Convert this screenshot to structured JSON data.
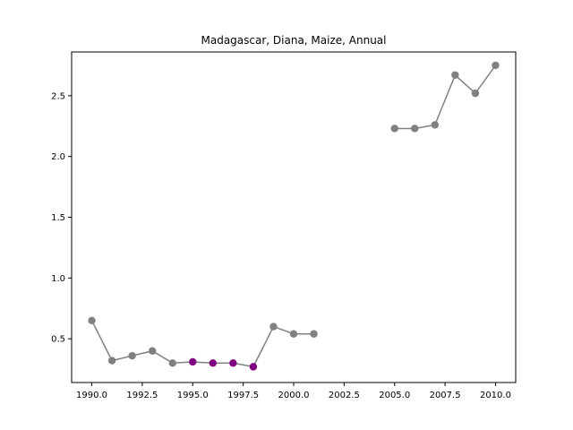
{
  "chart_data": {
    "type": "line",
    "title": "Madagascar, Diana, Maize, Annual",
    "xlabel": "",
    "ylabel": "",
    "xlim": [
      1989.0,
      2011.0
    ],
    "ylim": [
      0.14,
      2.86
    ],
    "x_ticks": [
      1990.0,
      1992.5,
      1995.0,
      1997.5,
      2000.0,
      2002.5,
      2005.0,
      2007.5,
      2010.0
    ],
    "x_tick_labels": [
      "1990.0",
      "1992.5",
      "1995.0",
      "1997.5",
      "2000.0",
      "2002.5",
      "2005.0",
      "2007.5",
      "2010.0"
    ],
    "y_ticks": [
      0.5,
      1.0,
      1.5,
      2.0,
      2.5
    ],
    "y_tick_labels": [
      "0.5",
      "1.0",
      "1.5",
      "2.0",
      "2.5"
    ],
    "grid": false,
    "series": [
      {
        "color": "#808080",
        "segments": [
          {
            "x": [
              1990,
              1991,
              1992,
              1993,
              1994,
              1995,
              1996,
              1997,
              1998,
              1999,
              2000,
              2001
            ],
            "y": [
              0.65,
              0.32,
              0.36,
              0.4,
              0.3,
              0.31,
              0.3,
              0.3,
              0.27,
              0.6,
              0.54,
              0.54
            ]
          },
          {
            "x": [
              2005,
              2006,
              2007,
              2008,
              2009,
              2010
            ],
            "y": [
              2.23,
              2.23,
              2.26,
              2.67,
              2.52,
              2.75
            ]
          }
        ],
        "highlight_color": "#800080",
        "highlight_x": [
          1995,
          1996,
          1997,
          1998
        ]
      }
    ]
  }
}
